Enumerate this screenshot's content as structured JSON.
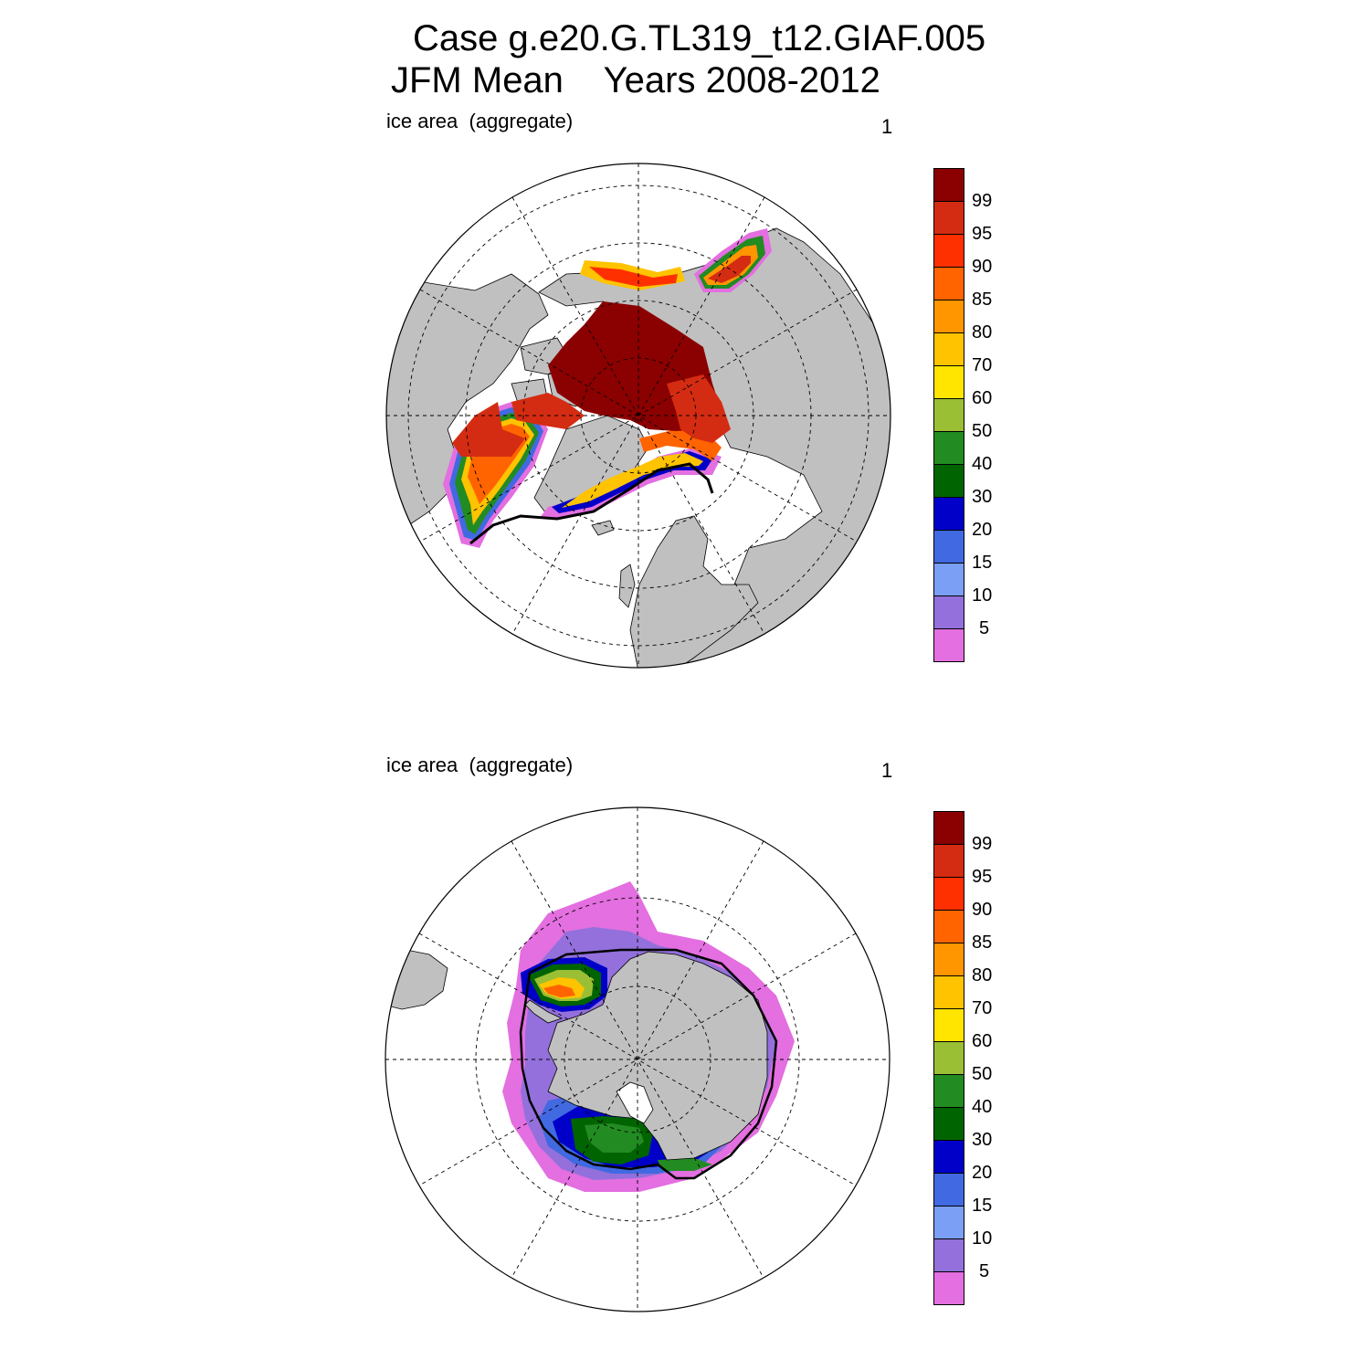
{
  "title": {
    "line1": "Case g.e20.G.TL319_t12.GIAF.005",
    "line2": "JFM Mean    Years 2008-2012"
  },
  "panels": [
    {
      "id": "north",
      "label": "ice area  (aggregate)",
      "units": "1"
    },
    {
      "id": "south",
      "label": "ice area  (aggregate)",
      "units": "1"
    }
  ],
  "colorbar": {
    "labels": [
      "99",
      "95",
      "90",
      "85",
      "80",
      "70",
      "60",
      "50",
      "40",
      "30",
      "20",
      "15",
      "10",
      "5"
    ],
    "colors": [
      "#8b0000",
      "#d42c12",
      "#ff3000",
      "#ff6400",
      "#ff9600",
      "#ffc300",
      "#ffe500",
      "#9bbf34",
      "#228b22",
      "#006400",
      "#0000c8",
      "#4169e1",
      "#7a9ff5",
      "#9370db",
      "#e36fe0"
    ]
  },
  "map_colors": {
    "land": "#c0c0c0",
    "ocean": "#ffffff"
  }
}
